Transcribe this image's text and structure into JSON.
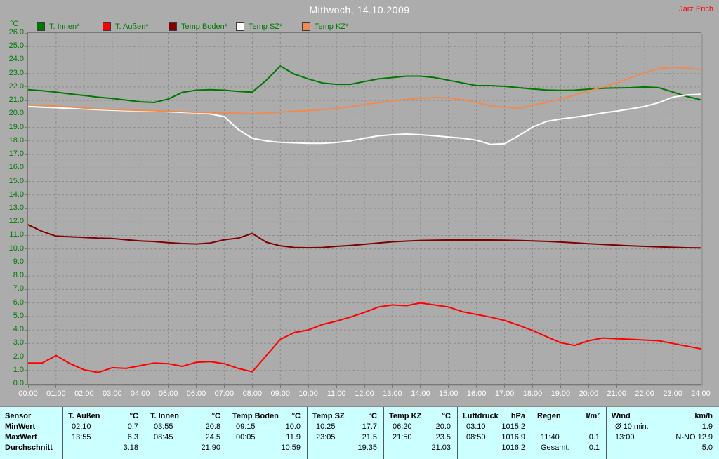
{
  "meta": {
    "user": "Jarz Erich"
  },
  "chart_data": {
    "type": "line",
    "title": "Mittwoch, 14.10.2009",
    "y_axis_unit": "°C",
    "ylim": [
      0,
      26
    ],
    "y_tick_step": 1.0,
    "x_step_hours": 0.5,
    "grid": "dashed",
    "legend_position": "top-left",
    "x_tick_labels": [
      "00:00",
      "01:00",
      "02:00",
      "03:00",
      "04:00",
      "05:00",
      "06:00",
      "07:00",
      "08:00",
      "09:00",
      "10:00",
      "11:00",
      "12:00",
      "13:00",
      "14:00",
      "15:00",
      "16:00",
      "17:00",
      "18:00",
      "19:00",
      "20:00",
      "21:00",
      "22:00",
      "23:00",
      "24:00"
    ],
    "y_tick_labels": [
      "0.0",
      "1.0",
      "2.0",
      "3.0",
      "4.0",
      "5.0",
      "6.0",
      "7.0",
      "8.0",
      "9.0",
      "10.0",
      "11.0",
      "12.0",
      "13.0",
      "14.0",
      "15.0",
      "16.0",
      "17.0",
      "18.0",
      "19.0",
      "20.0",
      "21.0",
      "22.0",
      "23.0",
      "24.0",
      "25.0",
      "26.0"
    ],
    "series": [
      {
        "name": "T. Innen*",
        "color": "#007800",
        "values": [
          21.8,
          21.72,
          21.62,
          21.48,
          21.37,
          21.24,
          21.15,
          21.03,
          20.9,
          20.85,
          21.1,
          21.6,
          21.76,
          21.8,
          21.76,
          21.67,
          21.62,
          22.5,
          23.55,
          22.95,
          22.6,
          22.3,
          22.2,
          22.2,
          22.4,
          22.6,
          22.7,
          22.8,
          22.8,
          22.7,
          22.5,
          22.3,
          22.1,
          22.1,
          22.05,
          21.95,
          21.85,
          21.78,
          21.75,
          21.76,
          21.84,
          21.9,
          21.93,
          21.95,
          22.0,
          21.95,
          21.63,
          21.3,
          21.05
        ]
      },
      {
        "name": "T. Außen*",
        "color": "#FF0000",
        "values": [
          1.55,
          1.55,
          2.1,
          1.5,
          1.05,
          0.85,
          1.2,
          1.15,
          1.35,
          1.55,
          1.5,
          1.3,
          1.6,
          1.65,
          1.5,
          1.15,
          0.9,
          2.1,
          3.3,
          3.8,
          4.0,
          4.4,
          4.65,
          4.95,
          5.3,
          5.7,
          5.85,
          5.8,
          6.0,
          5.85,
          5.7,
          5.35,
          5.15,
          4.95,
          4.7,
          4.35,
          3.95,
          3.5,
          3.05,
          2.85,
          3.2,
          3.4,
          3.35,
          3.3,
          3.25,
          3.2,
          3.0,
          2.8,
          2.6
        ]
      },
      {
        "name": "Temp Boden*",
        "color": "#800000",
        "values": [
          11.8,
          11.3,
          10.95,
          10.9,
          10.85,
          10.8,
          10.78,
          10.68,
          10.6,
          10.55,
          10.47,
          10.4,
          10.37,
          10.44,
          10.68,
          10.8,
          11.15,
          10.5,
          10.23,
          10.11,
          10.09,
          10.11,
          10.19,
          10.26,
          10.35,
          10.44,
          10.53,
          10.58,
          10.63,
          10.65,
          10.66,
          10.66,
          10.66,
          10.66,
          10.65,
          10.63,
          10.6,
          10.56,
          10.51,
          10.45,
          10.39,
          10.33,
          10.28,
          10.23,
          10.19,
          10.15,
          10.12,
          10.09,
          10.07
        ]
      },
      {
        "name": "Temp SZ*",
        "color": "#FFFFFF",
        "values": [
          20.55,
          20.5,
          20.46,
          20.41,
          20.37,
          20.32,
          20.28,
          20.25,
          20.23,
          20.2,
          20.16,
          20.12,
          20.09,
          20.0,
          19.8,
          18.85,
          18.2,
          18.0,
          17.9,
          17.86,
          17.82,
          17.82,
          17.89,
          18.0,
          18.2,
          18.38,
          18.46,
          18.51,
          18.46,
          18.38,
          18.29,
          18.2,
          18.06,
          17.75,
          17.8,
          18.38,
          19.03,
          19.45,
          19.63,
          19.76,
          19.9,
          20.07,
          20.21,
          20.38,
          20.56,
          20.84,
          21.24,
          21.41,
          21.46
        ]
      },
      {
        "name": "Temp KZ*",
        "color": "#F08A50",
        "values": [
          20.66,
          20.63,
          20.58,
          20.52,
          20.44,
          20.38,
          20.33,
          20.3,
          20.27,
          20.24,
          20.2,
          20.17,
          20.12,
          20.1,
          20.1,
          20.05,
          20.02,
          20.07,
          20.14,
          20.2,
          20.25,
          20.32,
          20.42,
          20.54,
          20.71,
          20.84,
          20.98,
          21.08,
          21.15,
          21.22,
          21.18,
          21.06,
          20.85,
          20.6,
          20.5,
          20.42,
          20.65,
          20.85,
          21.1,
          21.4,
          21.7,
          22.0,
          22.3,
          22.7,
          23.05,
          23.37,
          23.45,
          23.4,
          23.3
        ]
      }
    ]
  },
  "stats_table": {
    "row_labels": [
      "Sensor",
      "MinWert",
      "MaxWert",
      "Durchschnitt"
    ],
    "columns": [
      {
        "name": "T. Außen",
        "unit": "°C",
        "min": [
          "02:10",
          "0.7"
        ],
        "max": [
          "13:55",
          "6.3"
        ],
        "avg": [
          "",
          "3.18"
        ]
      },
      {
        "name": "T. Innen",
        "unit": "°C",
        "min": [
          "03:55",
          "20.8"
        ],
        "max": [
          "08:45",
          "24.5"
        ],
        "avg": [
          "",
          "21.90"
        ]
      },
      {
        "name": "Temp Boden",
        "unit": "°C",
        "min": [
          "09:15",
          "10.0"
        ],
        "max": [
          "00:05",
          "11.9"
        ],
        "avg": [
          "",
          "10.59"
        ]
      },
      {
        "name": "Temp SZ",
        "unit": "°C",
        "min": [
          "10:25",
          "17.7"
        ],
        "max": [
          "23:05",
          "21.5"
        ],
        "avg": [
          "",
          "19.35"
        ]
      },
      {
        "name": "Temp KZ",
        "unit": "°C",
        "min": [
          "06:20",
          "20.0"
        ],
        "max": [
          "21:50",
          "23.5"
        ],
        "avg": [
          "",
          "21.03"
        ]
      },
      {
        "name": "Luftdruck",
        "unit": "hPa",
        "min": [
          "03:10",
          "1015.2"
        ],
        "max": [
          "08:50",
          "1016.9"
        ],
        "avg": [
          "",
          "1016.2"
        ]
      },
      {
        "name": "Regen",
        "unit": "l/m²",
        "min": [
          "",
          ""
        ],
        "max": [
          "11:40",
          "0.1"
        ],
        "avg": [
          "Gesamt:",
          "0.1"
        ]
      },
      {
        "name": "Wind",
        "unit": "km/h",
        "min": [
          "Ø 10 min.",
          "1.9"
        ],
        "max": [
          "13:00",
          "N-NO 12.9"
        ],
        "avg": [
          "",
          "5.0"
        ]
      }
    ]
  },
  "colors": {
    "background": "#ACACAC",
    "grid": "#8B8B8B",
    "axis_text_green": "#007B00",
    "x_label_white": "#FFFFFF",
    "table_background": "#CCFFFF",
    "title_white": "#FFFFFF",
    "user_red": "#FF0000"
  }
}
